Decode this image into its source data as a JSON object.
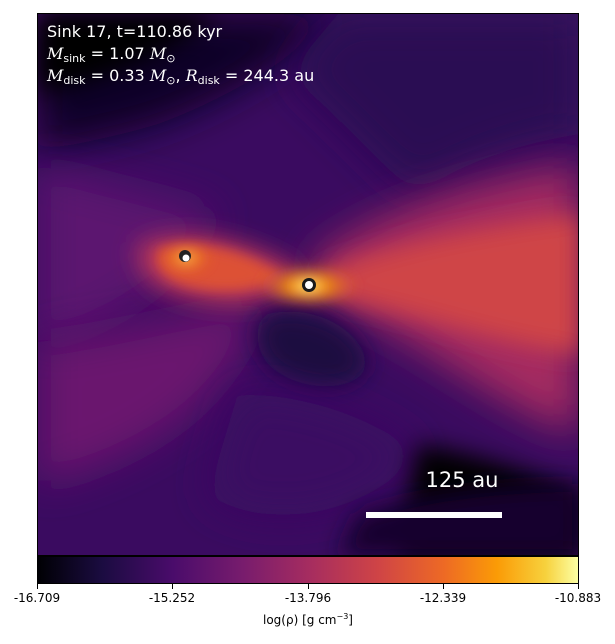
{
  "image": {
    "description_free": true,
    "colormap": "inferno",
    "annotation_color": "#ffffff"
  },
  "annotations": {
    "line1": "Sink 17, t=110.86 kyr",
    "mass_sink_symbol": "M",
    "mass_sink_sub": "sink",
    "mass_sink_value": " = 1.07 ",
    "mass_disk_symbol": "M",
    "mass_disk_sub": "disk",
    "mass_disk_value": " = 0.33 ",
    "radius_disk_symbol": "R",
    "radius_disk_sub": "disk",
    "radius_disk_value": " = 244.3 au",
    "msun_symbol": "M",
    "msun_sub": "⊙",
    "separator": ", "
  },
  "scale_bar": {
    "label": "125 au"
  },
  "colorbar": {
    "ticks": [
      "-16.709",
      "-15.252",
      "-13.796",
      "-12.339",
      "-10.883"
    ],
    "label_prefix": "log(ρ) [g cm",
    "label_exp": "−3",
    "label_suffix": "]",
    "colors": [
      "#000004",
      "#1b0c41",
      "#4a0c6b",
      "#781c6d",
      "#a52c60",
      "#cf4446",
      "#ed6925",
      "#fb9b06",
      "#f7d13d",
      "#fcffa4"
    ]
  }
}
